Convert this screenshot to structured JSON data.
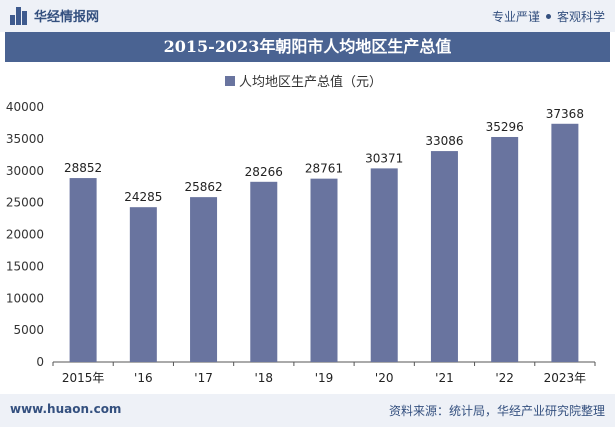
{
  "header": {
    "brand": "华经情报网",
    "taglines": [
      "专业严谨",
      "客观科学"
    ]
  },
  "title": "2015-2023年朝阳市人均地区生产总值",
  "footer": {
    "url": "www.huaon.com",
    "source": "资料来源：统计局，华经产业研究院整理"
  },
  "colors": {
    "bar": "#69749f",
    "title_bg": "#4a6392",
    "header_bg": "#eef1f7",
    "accent": "#34507f"
  },
  "chart_data": {
    "type": "bar",
    "categories": [
      "2015年",
      "'16",
      "'17",
      "'18",
      "'19",
      "'20",
      "'21",
      "'22",
      "2023年"
    ],
    "series": [
      {
        "name": "人均地区生产总值（元）",
        "values": [
          28852,
          24285,
          25862,
          28266,
          28761,
          30371,
          33086,
          35296,
          37368
        ]
      }
    ],
    "ylim": [
      0,
      40000
    ],
    "yticks": [
      0,
      5000,
      10000,
      15000,
      20000,
      25000,
      30000,
      35000,
      40000
    ],
    "legend": "top-center",
    "grid": false
  }
}
